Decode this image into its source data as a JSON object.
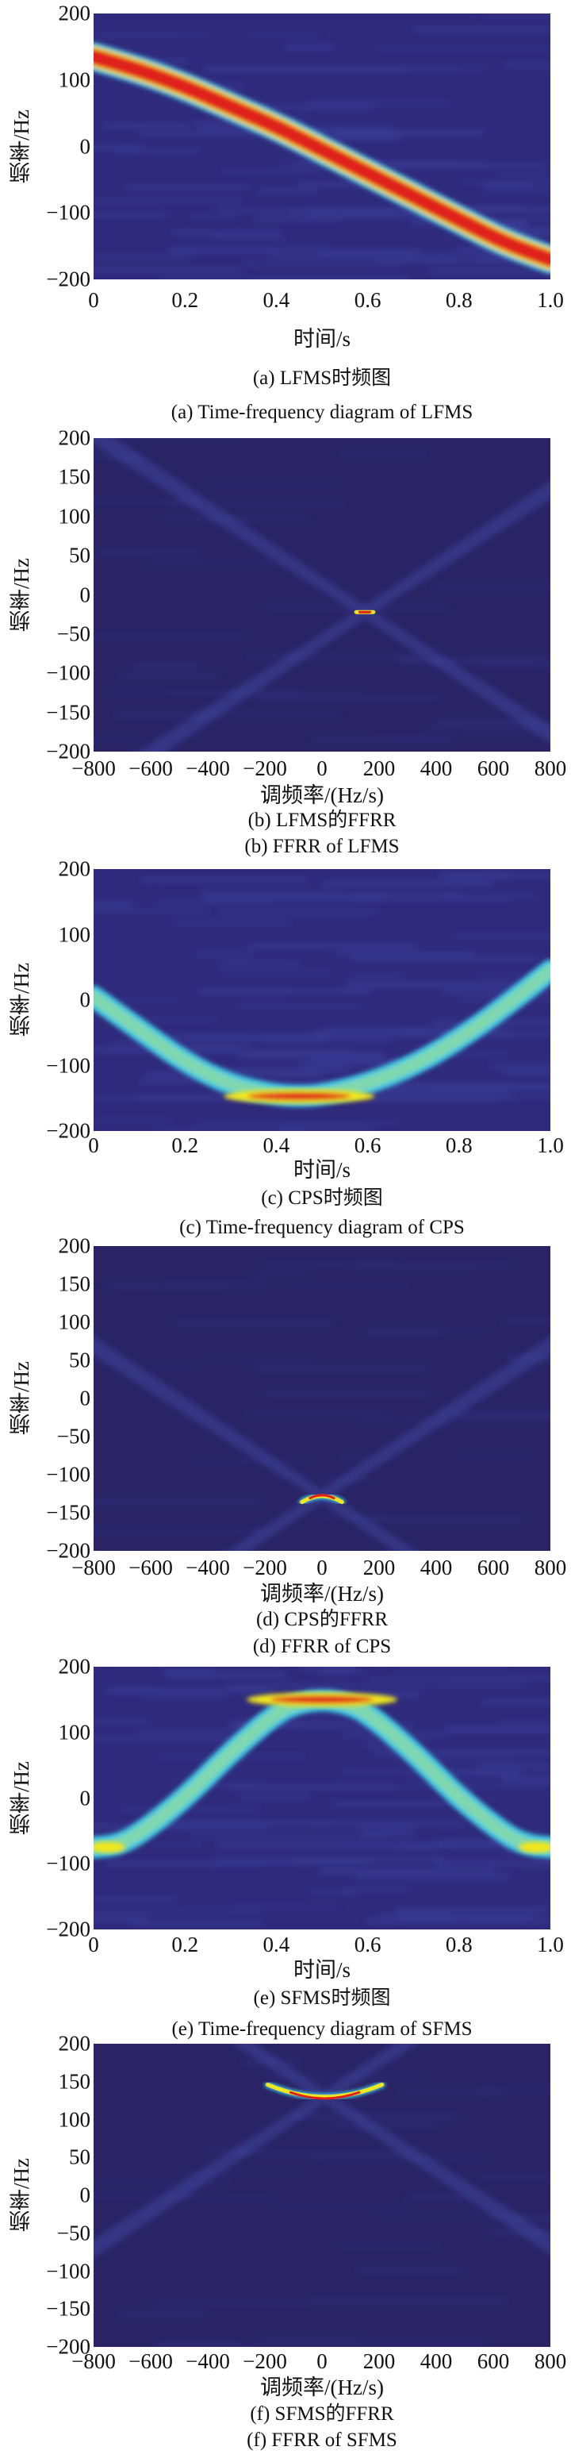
{
  "colors": {
    "background": "#2f2a7c",
    "background_dark": "#2a2466",
    "streak": "#3d47a6",
    "cyan": "#3cc8e6",
    "yellow": "#f2e61c",
    "red": "#e0201a",
    "darkred": "#7a0c0c"
  },
  "chart_data": [
    {
      "id": "a",
      "type": "heatmap",
      "kind": "tf",
      "caption_zh": "(a) LFMS时频图",
      "caption_en": "(a) Time-frequency diagram of LFMS",
      "xlabel": "时间/s",
      "ylabel": "频率/Hz",
      "xlim": [
        0,
        1.0
      ],
      "ylim": [
        -200,
        200
      ],
      "xticks": [
        "0",
        "0.2",
        "0.4",
        "0.6",
        "0.8",
        "1.0"
      ],
      "xtick_values": [
        0,
        0.2,
        0.4,
        0.6,
        0.8,
        1.0
      ],
      "yticks": [
        "200",
        "100",
        "0",
        "−100",
        "−200"
      ],
      "ytick_values": [
        200,
        100,
        0,
        -100,
        -200
      ],
      "ridge": {
        "x": [
          0,
          0.1,
          0.2,
          0.3,
          0.4,
          0.5,
          0.6,
          0.7,
          0.8,
          0.9,
          1.0
        ],
        "y": [
          135,
          115,
          90,
          60,
          30,
          -5,
          -40,
          -75,
          -110,
          -145,
          -170
        ]
      },
      "ridge_intensity": "high",
      "ridge_width_hz": 34
    },
    {
      "id": "b",
      "type": "heatmap",
      "kind": "ffrr",
      "caption_zh": "(b) LFMS的FFRR",
      "caption_en": "(b) FFRR of LFMS",
      "xlabel": "调频率/(Hz/s)",
      "ylabel": "频率/Hz",
      "xlim": [
        -800,
        800
      ],
      "ylim": [
        -200,
        200
      ],
      "xticks": [
        "−800",
        "−600",
        "−400",
        "−200",
        "0",
        "200",
        "400",
        "600",
        "800"
      ],
      "xtick_values": [
        -800,
        -600,
        -400,
        -200,
        0,
        200,
        400,
        600,
        800
      ],
      "yticks": [
        "200",
        "150",
        "100",
        "50",
        "0",
        "−50",
        "−100",
        "−150",
        "−200"
      ],
      "ytick_values": [
        200,
        150,
        100,
        50,
        0,
        -50,
        -100,
        -150,
        -200
      ],
      "peak": {
        "x": 150,
        "y": -22
      },
      "arc_half_width": 30,
      "arc_curve": 0
    },
    {
      "id": "c",
      "type": "heatmap",
      "kind": "tf",
      "caption_zh": "(c) CPS时频图",
      "caption_en": "(c) Time-frequency diagram of CPS",
      "xlabel": "时间/s",
      "ylabel": "频率/Hz",
      "xlim": [
        0,
        1.0
      ],
      "ylim": [
        -200,
        200
      ],
      "xticks": [
        "0",
        "0.2",
        "0.4",
        "0.6",
        "0.8",
        "1.0"
      ],
      "xtick_values": [
        0,
        0.2,
        0.4,
        0.6,
        0.8,
        1.0
      ],
      "yticks": [
        "200",
        "100",
        "0",
        "−100",
        "−200"
      ],
      "ytick_values": [
        200,
        100,
        0,
        -100,
        -200
      ],
      "ridge": {
        "x": [
          0,
          0.1,
          0.2,
          0.3,
          0.4,
          0.45,
          0.5,
          0.6,
          0.7,
          0.8,
          0.9,
          1.0
        ],
        "y": [
          5,
          -45,
          -95,
          -130,
          -145,
          -147,
          -145,
          -128,
          -100,
          -60,
          -10,
          45
        ]
      },
      "ridge_intensity": "medium",
      "ridge_width_hz": 28
    },
    {
      "id": "d",
      "type": "heatmap",
      "kind": "ffrr",
      "caption_zh": "(d) CPS的FFRR",
      "caption_en": "(d) FFRR of CPS",
      "xlabel": "调频率/(Hz/s)",
      "ylabel": "频率/Hz",
      "xlim": [
        -800,
        800
      ],
      "ylim": [
        -200,
        200
      ],
      "xticks": [
        "−800",
        "−600",
        "−400",
        "−200",
        "0",
        "200",
        "400",
        "600",
        "800"
      ],
      "xtick_values": [
        -800,
        -600,
        -400,
        -200,
        0,
        200,
        400,
        600,
        800
      ],
      "yticks": [
        "200",
        "150",
        "100",
        "50",
        "0",
        "−50",
        "−100",
        "−150",
        "−200"
      ],
      "ytick_values": [
        200,
        150,
        100,
        50,
        0,
        -50,
        -100,
        -150,
        -200
      ],
      "peak": {
        "x": 0,
        "y": -128
      },
      "arc_half_width": 70,
      "arc_curve": -8
    },
    {
      "id": "e",
      "type": "heatmap",
      "kind": "tf",
      "caption_zh": "(e) SFMS时频图",
      "caption_en": "(e) Time-frequency diagram of SFMS",
      "xlabel": "时间/s",
      "ylabel": "频率/Hz",
      "xlim": [
        0,
        1.0
      ],
      "ylim": [
        -200,
        200
      ],
      "xticks": [
        "0",
        "0.2",
        "0.4",
        "0.6",
        "0.8",
        "1.0"
      ],
      "xtick_values": [
        0,
        0.2,
        0.4,
        0.6,
        0.8,
        1.0
      ],
      "yticks": [
        "200",
        "100",
        "0",
        "−100",
        "−200"
      ],
      "ytick_values": [
        200,
        100,
        0,
        -100,
        -200
      ],
      "ridge": {
        "x": [
          0,
          0.05,
          0.1,
          0.2,
          0.3,
          0.4,
          0.45,
          0.5,
          0.55,
          0.6,
          0.7,
          0.8,
          0.9,
          0.95,
          1.0
        ],
        "y": [
          -75,
          -72,
          -55,
          0,
          70,
          130,
          145,
          150,
          145,
          130,
          70,
          0,
          -55,
          -72,
          -75
        ]
      },
      "ridge_intensity": "medium",
      "ridge_width_hz": 28
    },
    {
      "id": "f",
      "type": "heatmap",
      "kind": "ffrr",
      "caption_zh": "(f) SFMS的FFRR",
      "caption_en": "(f) FFRR of SFMS",
      "xlabel": "调频率/(Hz/s)",
      "ylabel": "频率/Hz",
      "xlim": [
        -800,
        800
      ],
      "ylim": [
        -200,
        200
      ],
      "xticks": [
        "−800",
        "−600",
        "−400",
        "−200",
        "0",
        "200",
        "400",
        "600",
        "800"
      ],
      "xtick_values": [
        -800,
        -600,
        -400,
        -200,
        0,
        200,
        400,
        600,
        800
      ],
      "yticks": [
        "200",
        "150",
        "100",
        "50",
        "0",
        "−50",
        "−100",
        "−150",
        "−200"
      ],
      "ytick_values": [
        200,
        150,
        100,
        50,
        0,
        -50,
        -100,
        -150,
        -200
      ],
      "peak": {
        "x": 10,
        "y": 130
      },
      "arc_half_width": 200,
      "arc_curve": 16
    }
  ]
}
